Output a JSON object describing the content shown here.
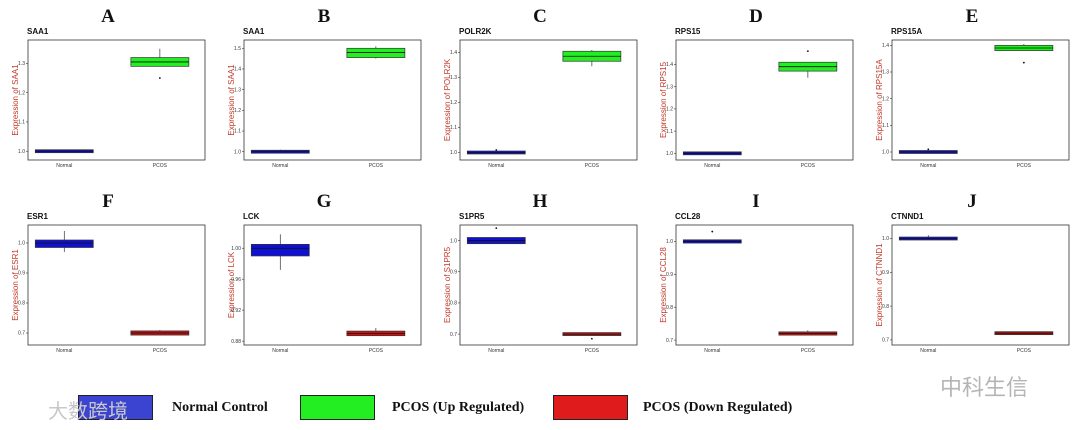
{
  "chart_data": [
    {
      "letter": "A",
      "title": "SAA1",
      "type": "box",
      "ylabel": "Expression of SAA1",
      "categories": [
        "Normal",
        "PCOS"
      ],
      "ylim": [
        0.97,
        1.38
      ],
      "yticks": [
        "1.0",
        "1.1",
        "1.2",
        "1.3"
      ],
      "boxes": [
        {
          "q1": 0.995,
          "median": 1.0,
          "q3": 1.005,
          "whisker_low": 0.995,
          "whisker_high": 1.005,
          "outliers": [],
          "color": "#1010d0"
        },
        {
          "q1": 1.29,
          "median": 1.305,
          "q3": 1.32,
          "whisker_low": 1.29,
          "whisker_high": 1.35,
          "outliers": [
            1.25
          ],
          "color": "#22ee22"
        }
      ]
    },
    {
      "letter": "B",
      "title": "SAA1",
      "type": "box",
      "ylabel": "Expression of SAA1",
      "categories": [
        "Normal",
        "PCOS"
      ],
      "ylim": [
        0.96,
        1.54
      ],
      "yticks": [
        "1.0",
        "1.1",
        "1.2",
        "1.3",
        "1.4",
        "1.5"
      ],
      "boxes": [
        {
          "q1": 0.998,
          "median": 1.0,
          "q3": 1.002,
          "whisker_low": 0.998,
          "whisker_high": 1.01,
          "outliers": [],
          "color": "#1010d0"
        },
        {
          "q1": 1.455,
          "median": 1.48,
          "q3": 1.5,
          "whisker_low": 1.45,
          "whisker_high": 1.51,
          "outliers": [],
          "color": "#22ee22"
        }
      ]
    },
    {
      "letter": "C",
      "title": "POLR2K",
      "type": "box",
      "ylabel": "Expression of POLR2K",
      "categories": [
        "Normal",
        "PCOS"
      ],
      "ylim": [
        0.97,
        1.45
      ],
      "yticks": [
        "1.0",
        "1.1",
        "1.2",
        "1.3",
        "1.4"
      ],
      "boxes": [
        {
          "q1": 0.998,
          "median": 1.0,
          "q3": 1.002,
          "whisker_low": 0.998,
          "whisker_high": 1.002,
          "outliers": [
            1.01
          ],
          "color": "#1010d0"
        },
        {
          "q1": 1.365,
          "median": 1.385,
          "q3": 1.405,
          "whisker_low": 1.345,
          "whisker_high": 1.41,
          "outliers": [],
          "color": "#22ee22"
        }
      ]
    },
    {
      "letter": "D",
      "title": "RPS15",
      "type": "box",
      "ylabel": "Expression of RPS15",
      "categories": [
        "Normal",
        "PCOS"
      ],
      "ylim": [
        0.97,
        1.51
      ],
      "yticks": [
        "1.0",
        "1.1",
        "1.2",
        "1.3",
        "1.4"
      ],
      "boxes": [
        {
          "q1": 0.995,
          "median": 1.0,
          "q3": 1.005,
          "whisker_low": 0.995,
          "whisker_high": 1.005,
          "outliers": [],
          "color": "#1010d0"
        },
        {
          "q1": 1.37,
          "median": 1.39,
          "q3": 1.41,
          "whisker_low": 1.34,
          "whisker_high": 1.41,
          "outliers": [
            1.46
          ],
          "color": "#22ee22"
        }
      ]
    },
    {
      "letter": "E",
      "title": "RPS15A",
      "type": "box",
      "ylabel": "Expression of RPS15A",
      "categories": [
        "Normal",
        "PCOS"
      ],
      "ylim": [
        0.97,
        1.42
      ],
      "yticks": [
        "1.0",
        "1.1",
        "1.2",
        "1.3",
        "1.4"
      ],
      "boxes": [
        {
          "q1": 0.997,
          "median": 1.0,
          "q3": 1.003,
          "whisker_low": 0.997,
          "whisker_high": 1.003,
          "outliers": [
            1.01
          ],
          "color": "#1010d0"
        },
        {
          "q1": 1.38,
          "median": 1.39,
          "q3": 1.4,
          "whisker_low": 1.38,
          "whisker_high": 1.405,
          "outliers": [
            1.335
          ],
          "color": "#22ee22"
        }
      ]
    },
    {
      "letter": "F",
      "title": "ESR1",
      "type": "box",
      "ylabel": "Expression of ESR1",
      "categories": [
        "Normal",
        "PCOS"
      ],
      "ylim": [
        0.66,
        1.06
      ],
      "yticks": [
        "0.7",
        "0.8",
        "0.9",
        "1.0"
      ],
      "boxes": [
        {
          "q1": 0.985,
          "median": 1.0,
          "q3": 1.01,
          "whisker_low": 0.97,
          "whisker_high": 1.04,
          "outliers": [],
          "color": "#1010d0"
        },
        {
          "q1": 0.693,
          "median": 0.7,
          "q3": 0.707,
          "whisker_low": 0.693,
          "whisker_high": 0.71,
          "outliers": [],
          "color": "#cc1111"
        }
      ]
    },
    {
      "letter": "G",
      "title": "LCK",
      "type": "box",
      "ylabel": "Expression of LCK",
      "categories": [
        "Normal",
        "PCOS"
      ],
      "ylim": [
        0.875,
        1.03
      ],
      "yticks": [
        "0.88",
        "0.92",
        "0.96",
        "1.00"
      ],
      "boxes": [
        {
          "q1": 0.99,
          "median": 1.0,
          "q3": 1.005,
          "whisker_low": 0.972,
          "whisker_high": 1.018,
          "outliers": [],
          "color": "#1010d0"
        },
        {
          "q1": 0.887,
          "median": 0.89,
          "q3": 0.893,
          "whisker_low": 0.887,
          "whisker_high": 0.897,
          "outliers": [],
          "color": "#cc1111"
        }
      ]
    },
    {
      "letter": "H",
      "title": "S1PR5",
      "type": "box",
      "ylabel": "Expression of S1PR5",
      "categories": [
        "Normal",
        "PCOS"
      ],
      "ylim": [
        0.665,
        1.05
      ],
      "yticks": [
        "0.7",
        "0.8",
        "0.9",
        "1.0"
      ],
      "boxes": [
        {
          "q1": 0.99,
          "median": 1.0,
          "q3": 1.01,
          "whisker_low": 0.99,
          "whisker_high": 1.01,
          "outliers": [
            1.04
          ],
          "color": "#1010d0"
        },
        {
          "q1": 0.698,
          "median": 0.7,
          "q3": 0.702,
          "whisker_low": 0.698,
          "whisker_high": 0.702,
          "outliers": [
            0.685
          ],
          "color": "#cc1111"
        }
      ]
    },
    {
      "letter": "I",
      "title": "CCL28",
      "type": "box",
      "ylabel": "Expression of CCL28",
      "categories": [
        "Normal",
        "PCOS"
      ],
      "ylim": [
        0.685,
        1.05
      ],
      "yticks": [
        "0.7",
        "0.8",
        "0.9",
        "1.0"
      ],
      "boxes": [
        {
          "q1": 0.995,
          "median": 1.0,
          "q3": 1.005,
          "whisker_low": 0.995,
          "whisker_high": 1.005,
          "outliers": [
            1.03
          ],
          "color": "#1010d0"
        },
        {
          "q1": 0.715,
          "median": 0.72,
          "q3": 0.725,
          "whisker_low": 0.715,
          "whisker_high": 0.73,
          "outliers": [],
          "color": "#cc1111"
        }
      ]
    },
    {
      "letter": "J",
      "title": "CTNND1",
      "type": "box",
      "ylabel": "Expression of CTNND1",
      "categories": [
        "Normal",
        "PCOS"
      ],
      "ylim": [
        0.685,
        1.04
      ],
      "yticks": [
        "0.7",
        "0.8",
        "0.9",
        "1.0"
      ],
      "boxes": [
        {
          "q1": 0.996,
          "median": 1.0,
          "q3": 1.004,
          "whisker_low": 0.996,
          "whisker_high": 1.01,
          "outliers": [],
          "color": "#1010d0"
        },
        {
          "q1": 0.718,
          "median": 0.72,
          "q3": 0.722,
          "whisker_low": 0.718,
          "whisker_high": 0.722,
          "outliers": [],
          "color": "#cc1111"
        }
      ]
    }
  ],
  "legend": [
    {
      "label": "Normal  Control",
      "color": "#3a44d0"
    },
    {
      "label": "PCOS (Up Regulated)",
      "color": "#22ee22"
    },
    {
      "label": "PCOS (Down Regulated)",
      "color": "#e01b1b"
    }
  ],
  "watermarks": {
    "left": "大数跨境",
    "right": "中科生信"
  }
}
